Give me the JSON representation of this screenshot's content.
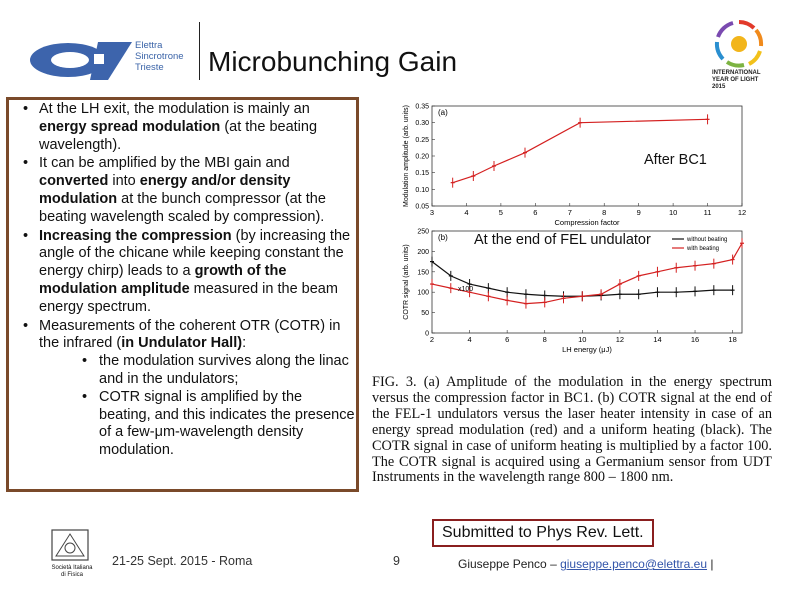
{
  "header": {
    "title": "Microbunching Gain",
    "org_lines": [
      "Elettra",
      "Sincrotrone",
      "Trieste"
    ],
    "iyl_lines": [
      "INTERNATIONAL",
      "YEAR OF LIGHT",
      "2015"
    ]
  },
  "bullets": [
    {
      "parts": [
        {
          "t": "At the LH exit, the modulation is mainly an "
        },
        {
          "t": "energy spread modulation",
          "b": true
        },
        {
          "t": " (at the beating wavelength)."
        }
      ]
    },
    {
      "parts": [
        {
          "t": "It can be amplified by the MBI gain and "
        },
        {
          "t": "converted",
          "b": true
        },
        {
          "t": " into "
        },
        {
          "t": "energy and/or density modulation",
          "b": true
        },
        {
          "t": " at the bunch compressor (at the beating wavelength scaled by compression)."
        }
      ]
    },
    {
      "parts": [
        {
          "t": "Increasing the compression",
          "b": true
        },
        {
          "t": " (by increasing the angle of the chicane while keeping constant the energy chirp) leads to a "
        },
        {
          "t": "growth of the modulation amplitude",
          "b": true
        },
        {
          "t": " measured in the beam energy spectrum."
        }
      ]
    },
    {
      "parts": [
        {
          "t": "Measurements of the coherent OTR (COTR) in the infrared ("
        },
        {
          "t": "in Undulator Hall)",
          "b": true
        },
        {
          "t": ":"
        }
      ],
      "sub": [
        "the modulation survives along the linac and in the undulators;",
        "COTR signal is amplified by the beating, and this indicates the presence of a few-μm-wavelength density modulation."
      ]
    }
  ],
  "annotations": {
    "after_bc1": "After BC1",
    "end_fel": "At the end of FEL undulator"
  },
  "chart_data": [
    {
      "type": "line",
      "panel_label": "(a)",
      "xlabel": "Compression factor",
      "ylabel": "Modulation amplitude (arb. units)",
      "xlim": [
        3,
        12
      ],
      "ylim": [
        0.05,
        0.35
      ],
      "xticks": [
        3,
        4,
        5,
        6,
        7,
        8,
        9,
        10,
        11,
        12
      ],
      "yticks": [
        0.05,
        0.1,
        0.15,
        0.2,
        0.25,
        0.3,
        0.35
      ],
      "series": [
        {
          "name": "modulation amplitude",
          "color": "#d42020",
          "x": [
            3.6,
            4.2,
            4.8,
            5.7,
            7.3,
            11.0
          ],
          "y": [
            0.12,
            0.14,
            0.17,
            0.21,
            0.3,
            0.31
          ]
        }
      ]
    },
    {
      "type": "line",
      "panel_label": "(b)",
      "xlabel": "LH energy (μJ)",
      "ylabel": "COTR signal (arb. units)",
      "xlim": [
        2,
        18.5
      ],
      "ylim": [
        0,
        250
      ],
      "xticks": [
        2,
        4,
        6,
        8,
        10,
        12,
        14,
        16,
        18
      ],
      "yticks": [
        0,
        50,
        100,
        150,
        200,
        250
      ],
      "annotation": "x100",
      "legend": [
        "without beating",
        "with beating"
      ],
      "series": [
        {
          "name": "without beating",
          "color": "#111111",
          "x": [
            2,
            3,
            4,
            5,
            6,
            7,
            8,
            9,
            10,
            11,
            12,
            13,
            14,
            15,
            16,
            17,
            18
          ],
          "y": [
            175,
            140,
            120,
            110,
            100,
            95,
            92,
            90,
            90,
            92,
            95,
            95,
            100,
            100,
            102,
            105,
            105
          ]
        },
        {
          "name": "with beating",
          "color": "#d42020",
          "x": [
            2,
            3,
            4,
            5,
            6,
            7,
            8,
            9,
            10,
            11,
            12,
            13,
            14,
            15,
            16,
            17,
            18,
            18.5
          ],
          "y": [
            120,
            110,
            100,
            90,
            80,
            72,
            75,
            85,
            90,
            95,
            120,
            140,
            150,
            160,
            165,
            170,
            180,
            220
          ]
        }
      ]
    }
  ],
  "caption": "FIG. 3. (a) Amplitude of the modulation in the energy spectrum versus the compression factor in BC1. (b) COTR signal at the end of the FEL-1 undulators versus the laser heater intensity in case of an energy spread modulation (red) and a uniform heating (black). The COTR signal in case of uniform heating is multiplied by a factor 100. The COTR signal is acquired using a Germanium sensor from UDT Instruments in the wavelength range 800 – 1800 nm.",
  "submitted": "Submitted to Phys Rev. Lett.",
  "footer": {
    "society_lines": [
      "Società Italiana",
      "di Fisica"
    ],
    "date": "21-25 Sept. 2015 - Roma",
    "page": "9",
    "author_prefix": "Giuseppe Penco – ",
    "email": "giuseppe.penco@elettra.eu",
    "author_suffix": " |"
  }
}
